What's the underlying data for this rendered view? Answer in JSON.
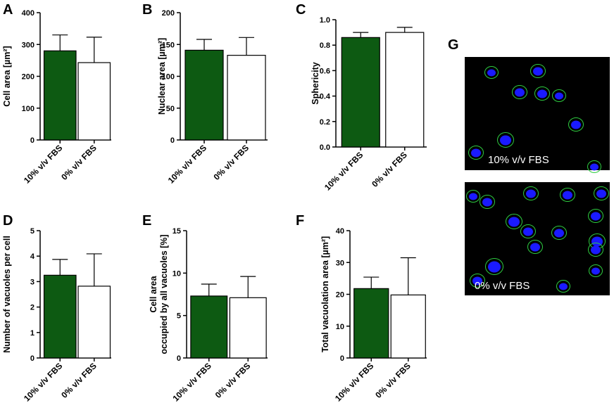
{
  "colors": {
    "bar_fill_1": "#0d5a12",
    "bar_fill_2": "#ffffff",
    "axis": "#000000",
    "micrograph_bg": "#000000",
    "nucleus": "#1a1aff",
    "cell_outline": "#2ecc40"
  },
  "chart_data": [
    {
      "panel": "A",
      "type": "bar",
      "categories": [
        "10% v/v FBS",
        "0% v/v FBS"
      ],
      "values": [
        280,
        243
      ],
      "errors": [
        50,
        80
      ],
      "ylabel": "Cell area [µm²]",
      "ylim": [
        0,
        400
      ],
      "yticks": [
        0,
        100,
        200,
        300,
        400
      ],
      "grid": false
    },
    {
      "panel": "B",
      "type": "bar",
      "categories": [
        "10% v/v FBS",
        "0% v/v FBS"
      ],
      "values": [
        141,
        133
      ],
      "errors": [
        17,
        28
      ],
      "ylabel": "Nuclear area [µm²]",
      "ylim": [
        0,
        200
      ],
      "yticks": [
        0,
        50,
        100,
        150,
        200
      ],
      "grid": false
    },
    {
      "panel": "C",
      "type": "bar",
      "categories": [
        "10% v/v FBS",
        "0% v/v FBS"
      ],
      "values": [
        0.86,
        0.9
      ],
      "errors": [
        0.04,
        0.04
      ],
      "ylabel": "Sphericity",
      "ylim": [
        0,
        1.0
      ],
      "yticks": [
        0.0,
        0.2,
        0.4,
        0.6,
        0.8,
        1.0
      ],
      "ytick_labels": [
        "0.0",
        "0.2",
        "0.4",
        "0.6",
        "0.8",
        "1.0"
      ],
      "grid": false
    },
    {
      "panel": "D",
      "type": "bar",
      "categories": [
        "10% v/v FBS",
        "0% v/v FBS"
      ],
      "values": [
        3.25,
        2.82
      ],
      "errors": [
        0.62,
        1.27
      ],
      "ylabel": "Number of vacuoles per cell",
      "ylim": [
        0,
        5
      ],
      "yticks": [
        0,
        1,
        2,
        3,
        4,
        5
      ],
      "grid": false
    },
    {
      "panel": "E",
      "type": "bar",
      "categories": [
        "10% v/v FBS",
        "0% v/v FBS"
      ],
      "values": [
        7.3,
        7.1
      ],
      "errors": [
        1.4,
        2.5
      ],
      "ylabel": "Cell area occupied by all vacuoles [%]",
      "ylabel_lines": [
        "Cell area",
        "occupied by all vacuoles [%]"
      ],
      "ylim": [
        0,
        15
      ],
      "yticks": [
        0,
        5,
        10,
        15
      ],
      "grid": false
    },
    {
      "panel": "F",
      "type": "bar",
      "categories": [
        "10% v/v FBS",
        "0% v/v FBS"
      ],
      "values": [
        21.8,
        19.8
      ],
      "errors": [
        3.6,
        11.7
      ],
      "ylabel": "Total vacuolation area [µm²]",
      "ylim": [
        0,
        40
      ],
      "yticks": [
        0,
        10,
        20,
        30,
        40
      ],
      "grid": false
    }
  ],
  "micrographs": {
    "panel": "G",
    "images": [
      {
        "label": "10% v/v FBS"
      },
      {
        "label": "0% v/v FBS"
      }
    ]
  }
}
